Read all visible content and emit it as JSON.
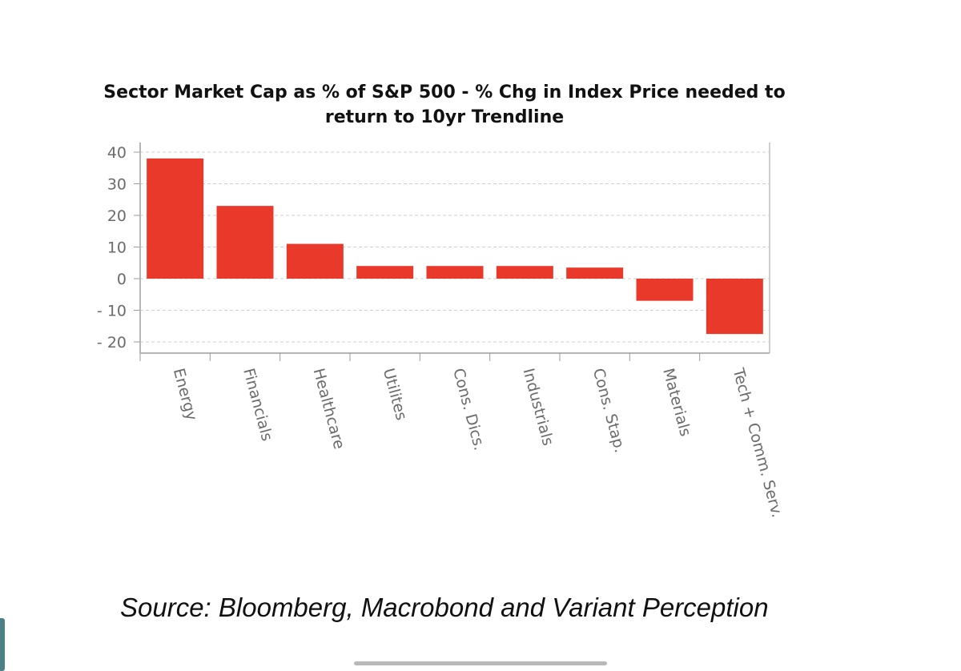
{
  "chart_data": {
    "type": "bar",
    "title_lines": [
      "Sector Market Cap as % of S&P 500 - % Chg in Index Price needed to",
      "return to 10yr Trendline"
    ],
    "categories": [
      "Energy",
      "Financials",
      "Healthcare",
      "Utilites",
      "Cons. Dics.",
      "Industrials",
      "Cons. Stap.",
      "Materials",
      "Tech + Comm. Serv."
    ],
    "values": [
      38,
      23,
      11,
      4,
      4,
      4,
      3.5,
      -7,
      -17.5
    ],
    "ylim": [
      -22,
      40
    ],
    "yticks": [
      40,
      30,
      20,
      10,
      0,
      -10,
      -20
    ],
    "ytick_labels": [
      "40",
      "30",
      "20",
      "10",
      "0",
      "- 10",
      "- 20"
    ],
    "grid": true,
    "bar_color": "#e8392a",
    "legend": "none"
  },
  "source_note": "Source: Bloomberg, Macrobond and Variant Perception"
}
